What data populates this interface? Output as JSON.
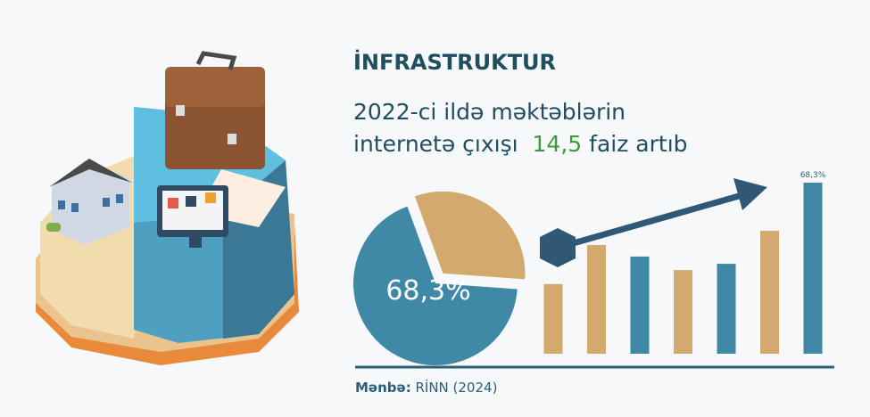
{
  "header": {
    "title": "İNFRASTRUKTUR",
    "line_1": "2022-ci ildə məktəblərin",
    "line_2_start": "internetə çıxışı",
    "highlight": "14,5",
    "line_2_end": "faiz artıb"
  },
  "source": {
    "label": "Mənbə:",
    "text": "RİNN (2024)"
  },
  "chart_data": [
    {
      "type": "pie",
      "values": [
        68.3,
        31.7
      ],
      "value_labels": [
        "68,3%",
        null
      ],
      "colors": [
        "#3f88a6",
        "#d4a96e"
      ]
    },
    {
      "type": "bar",
      "values": [
        27.8,
        43.4,
        38.8,
        33.4,
        35.9,
        49.1,
        68.3
      ],
      "value_labels": [
        null,
        null,
        null,
        null,
        null,
        null,
        "68,3%"
      ],
      "colors": [
        "#d4a96e",
        "#d4a96e",
        "#3f88a6",
        "#d4a96e",
        "#3f88a6",
        "#d4a96e",
        "#3f88a6"
      ]
    }
  ]
}
